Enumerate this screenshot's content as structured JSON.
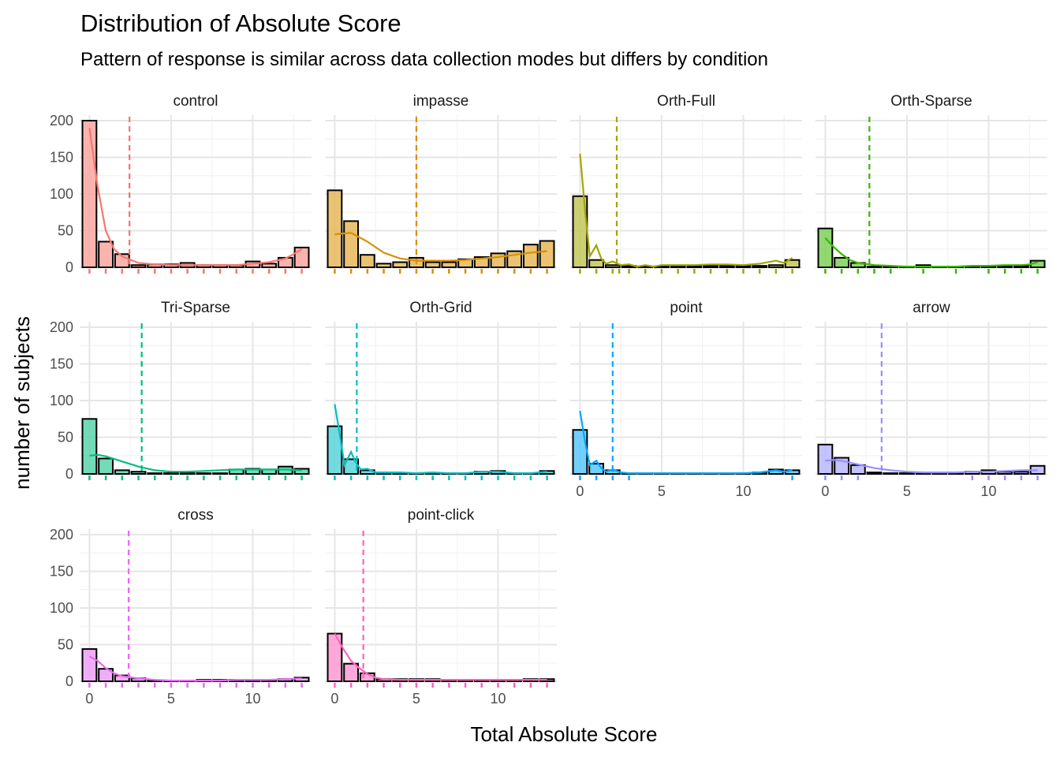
{
  "chart_data": {
    "type": "bar",
    "title": "Distribution of Absolute Score",
    "subtitle": "Pattern of response is similar across data collection modes but differs by condition",
    "xlabel": "Total Absolute Score",
    "ylabel": "number of subjects",
    "xlim": [
      -0.6,
      13.6
    ],
    "ylim": [
      0,
      200
    ],
    "x_ticks": [
      0,
      5,
      10
    ],
    "x_tick_labels": [
      "0",
      "5",
      "10"
    ],
    "y_ticks": [
      0,
      50,
      100,
      150,
      200
    ],
    "y_tick_labels": [
      "0",
      "50",
      "100",
      "150",
      "200"
    ],
    "x_values": [
      0,
      1,
      2,
      3,
      4,
      5,
      6,
      7,
      8,
      9,
      10,
      11,
      12,
      13
    ],
    "grid": true,
    "legend": "none",
    "panels": [
      {
        "name": "control",
        "color": "#F8766D",
        "counts": [
          200,
          35,
          18,
          3,
          4,
          4,
          6,
          3,
          3,
          3,
          8,
          5,
          13,
          27
        ],
        "density": [
          [
            0,
            190
          ],
          [
            0.5,
            110
          ],
          [
            1,
            50
          ],
          [
            1.5,
            25
          ],
          [
            2,
            15
          ],
          [
            3,
            6
          ],
          [
            4,
            4
          ],
          [
            5,
            3
          ],
          [
            6,
            3
          ],
          [
            7,
            3
          ],
          [
            8,
            3
          ],
          [
            9,
            3
          ],
          [
            10,
            5
          ],
          [
            11,
            7
          ],
          [
            12,
            12
          ],
          [
            12.5,
            18
          ],
          [
            13,
            25
          ]
        ],
        "mean": 2.45,
        "rug": [
          0,
          1,
          2,
          3,
          4,
          5,
          6,
          7,
          8,
          9,
          10,
          11,
          12,
          13
        ]
      },
      {
        "name": "impasse",
        "color": "#D89000",
        "counts": [
          105,
          63,
          17,
          5,
          7,
          13,
          7,
          7,
          11,
          14,
          19,
          22,
          31,
          36
        ],
        "density": [
          [
            0,
            45
          ],
          [
            1,
            47
          ],
          [
            2,
            35
          ],
          [
            3,
            20
          ],
          [
            4,
            12
          ],
          [
            5,
            9
          ],
          [
            6,
            9
          ],
          [
            7,
            9
          ],
          [
            8,
            10
          ],
          [
            9,
            12
          ],
          [
            10,
            14
          ],
          [
            11,
            17
          ],
          [
            12,
            20
          ],
          [
            13,
            22
          ]
        ],
        "mean": 5.0,
        "rug": [
          0,
          1,
          2,
          3,
          4,
          5,
          6,
          7,
          8,
          9,
          10,
          11,
          12,
          13
        ]
      },
      {
        "name": "Orth-Full",
        "color": "#A3A500",
        "counts": [
          97,
          10,
          3,
          2,
          1,
          1,
          1,
          2,
          2,
          2,
          2,
          2,
          3,
          10
        ],
        "density": [
          [
            0,
            155
          ],
          [
            0.3,
            80
          ],
          [
            0.6,
            15
          ],
          [
            1,
            30
          ],
          [
            1.3,
            12
          ],
          [
            1.6,
            5
          ],
          [
            2,
            8
          ],
          [
            2.5,
            3
          ],
          [
            3,
            4
          ],
          [
            3.5,
            1
          ],
          [
            4,
            3
          ],
          [
            4.5,
            1
          ],
          [
            5,
            3
          ],
          [
            6,
            3
          ],
          [
            7,
            3
          ],
          [
            8,
            4
          ],
          [
            9,
            4
          ],
          [
            10,
            3
          ],
          [
            11,
            5
          ],
          [
            12,
            9
          ],
          [
            12.5,
            6
          ],
          [
            13,
            13
          ]
        ],
        "mean": 2.25,
        "rug": [
          0,
          1,
          2,
          2.4,
          3,
          4,
          5,
          6,
          7,
          8,
          9,
          10,
          11,
          12,
          13
        ]
      },
      {
        "name": "Orth-Sparse",
        "color": "#39B600",
        "counts": [
          53,
          13,
          6,
          1,
          1,
          1,
          3,
          1,
          1,
          1,
          2,
          2,
          2,
          9
        ],
        "density": [
          [
            0,
            40
          ],
          [
            0.5,
            28
          ],
          [
            1,
            18
          ],
          [
            1.5,
            10
          ],
          [
            2,
            6
          ],
          [
            3,
            3
          ],
          [
            4,
            2
          ],
          [
            5,
            1
          ],
          [
            6,
            1
          ],
          [
            7,
            1
          ],
          [
            8,
            1
          ],
          [
            9,
            2
          ],
          [
            10,
            2
          ],
          [
            11,
            3
          ],
          [
            12,
            3
          ],
          [
            12.5,
            4
          ],
          [
            13,
            7
          ]
        ],
        "mean": 2.7,
        "rug": [
          0,
          1,
          2,
          3,
          4,
          6,
          8,
          10,
          11,
          12,
          13
        ]
      },
      {
        "name": "Tri-Sparse",
        "color": "#00BF7D",
        "counts": [
          75,
          21,
          5,
          3,
          1,
          1,
          1,
          1,
          1,
          6,
          7,
          6,
          10,
          7
        ],
        "density": [
          [
            0,
            25
          ],
          [
            0.5,
            26
          ],
          [
            1,
            24
          ],
          [
            2,
            17
          ],
          [
            3,
            10
          ],
          [
            4,
            5
          ],
          [
            5,
            3
          ],
          [
            6,
            3
          ],
          [
            7,
            4
          ],
          [
            8,
            5
          ],
          [
            9,
            6
          ],
          [
            10,
            6
          ],
          [
            11,
            6
          ],
          [
            12,
            6
          ],
          [
            13,
            5
          ]
        ],
        "mean": 3.2,
        "rug": [
          0,
          1,
          2,
          3,
          4,
          5,
          6,
          7,
          8,
          9,
          10,
          11,
          12,
          13
        ]
      },
      {
        "name": "Orth-Grid",
        "color": "#00BFC4",
        "counts": [
          65,
          20,
          5,
          2,
          1,
          1,
          1,
          1,
          1,
          3,
          4,
          1,
          1,
          4
        ],
        "density": [
          [
            0,
            95
          ],
          [
            0.3,
            55
          ],
          [
            0.6,
            12
          ],
          [
            1,
            30
          ],
          [
            1.3,
            15
          ],
          [
            1.6,
            6
          ],
          [
            2,
            7
          ],
          [
            2.5,
            2
          ],
          [
            3,
            2
          ],
          [
            4,
            2
          ],
          [
            5,
            1
          ],
          [
            6,
            2
          ],
          [
            7,
            1
          ],
          [
            8,
            1
          ],
          [
            9,
            3
          ],
          [
            10,
            3
          ],
          [
            11,
            1
          ],
          [
            12,
            1
          ],
          [
            12.5,
            2
          ],
          [
            13,
            3
          ]
        ],
        "mean": 1.35,
        "rug": [
          0,
          1,
          2,
          3,
          4,
          5,
          6,
          7,
          8,
          9,
          10,
          11,
          12,
          13
        ]
      },
      {
        "name": "point",
        "color": "#00A9FF",
        "counts": [
          60,
          14,
          5,
          1,
          1,
          1,
          1,
          1,
          1,
          1,
          1,
          2,
          6,
          5
        ],
        "density": [
          [
            0,
            86
          ],
          [
            0.3,
            45
          ],
          [
            0.6,
            12
          ],
          [
            1,
            18
          ],
          [
            1.3,
            8
          ],
          [
            1.6,
            3
          ],
          [
            2,
            6
          ],
          [
            2.5,
            2
          ],
          [
            3,
            1
          ],
          [
            4,
            1
          ],
          [
            5,
            1
          ],
          [
            6,
            1
          ],
          [
            7,
            1
          ],
          [
            8,
            1
          ],
          [
            9,
            1
          ],
          [
            10,
            1
          ],
          [
            11,
            2
          ],
          [
            12,
            5
          ],
          [
            12.5,
            3
          ],
          [
            13,
            5
          ]
        ],
        "mean": 2.0,
        "rug": [
          0,
          1,
          2,
          3,
          13
        ]
      },
      {
        "name": "arrow",
        "color": "#9590FF",
        "counts": [
          40,
          22,
          12,
          2,
          1,
          1,
          1,
          1,
          1,
          3,
          5,
          3,
          3,
          11
        ],
        "density": [
          [
            0,
            18
          ],
          [
            0.5,
            19
          ],
          [
            1,
            18
          ],
          [
            2,
            13
          ],
          [
            3,
            8
          ],
          [
            4,
            5
          ],
          [
            5,
            3
          ],
          [
            6,
            2
          ],
          [
            7,
            2
          ],
          [
            8,
            2
          ],
          [
            9,
            3
          ],
          [
            10,
            3
          ],
          [
            11,
            4
          ],
          [
            12,
            5
          ],
          [
            13,
            5
          ]
        ],
        "mean": 3.45,
        "rug": [
          0,
          1,
          2,
          9,
          10,
          11,
          12,
          13
        ]
      },
      {
        "name": "cross",
        "color": "#E76BF3",
        "counts": [
          44,
          17,
          8,
          4,
          1,
          1,
          1,
          2,
          2,
          2,
          2,
          2,
          3,
          5
        ],
        "density": [
          [
            0,
            34
          ],
          [
            0.5,
            28
          ],
          [
            1,
            18
          ],
          [
            1.5,
            11
          ],
          [
            2,
            7
          ],
          [
            3,
            4
          ],
          [
            4,
            2
          ],
          [
            5,
            1
          ],
          [
            6,
            1
          ],
          [
            7,
            1
          ],
          [
            8,
            1
          ],
          [
            9,
            2
          ],
          [
            10,
            2
          ],
          [
            11,
            2
          ],
          [
            12,
            3
          ],
          [
            13,
            4
          ]
        ],
        "mean": 2.4,
        "rug": [
          0,
          1,
          2,
          3,
          4,
          5,
          6,
          7,
          8,
          9,
          10,
          11,
          12,
          13
        ]
      },
      {
        "name": "point-click",
        "color": "#FF62BC",
        "counts": [
          65,
          24,
          11,
          3,
          3,
          3,
          3,
          2,
          2,
          2,
          1,
          1,
          3,
          3
        ],
        "density": [
          [
            0,
            65
          ],
          [
            0.5,
            45
          ],
          [
            1,
            28
          ],
          [
            1.5,
            18
          ],
          [
            2,
            10
          ],
          [
            2.5,
            5
          ],
          [
            3,
            3
          ],
          [
            4,
            2
          ],
          [
            5,
            2
          ],
          [
            6,
            2
          ],
          [
            7,
            2
          ],
          [
            8,
            2
          ],
          [
            9,
            2
          ],
          [
            10,
            2
          ],
          [
            11,
            2
          ],
          [
            12,
            2
          ],
          [
            13,
            2
          ]
        ],
        "mean": 1.75,
        "rug": [
          0,
          1,
          2,
          3,
          4,
          5,
          6,
          7,
          8,
          9,
          10,
          11,
          12,
          13
        ]
      }
    ]
  }
}
